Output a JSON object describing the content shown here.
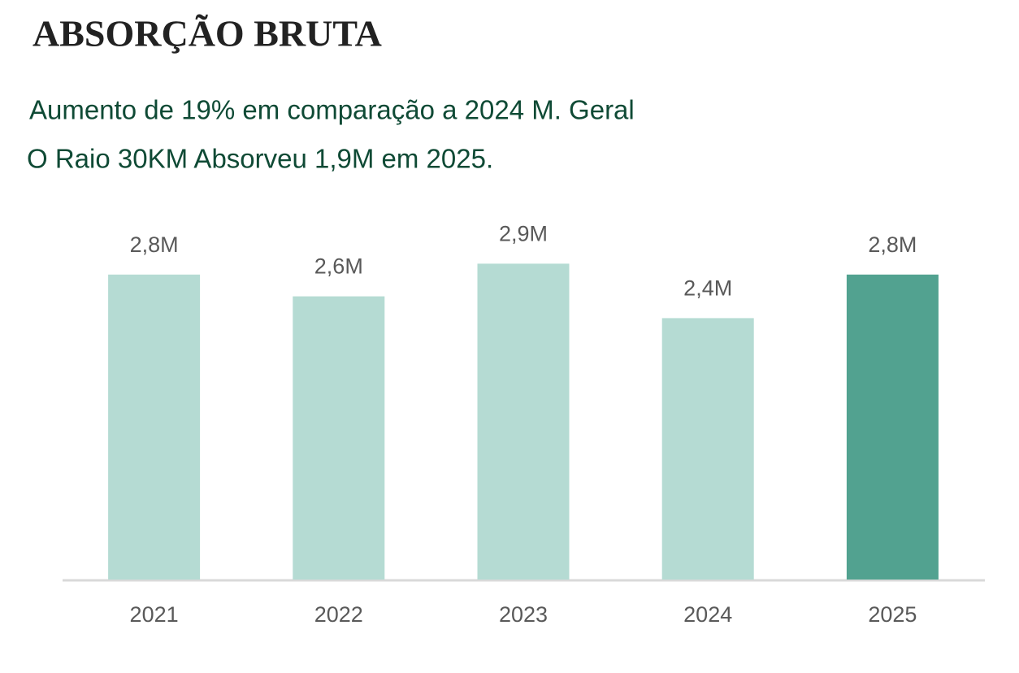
{
  "chart_data": {
    "type": "bar",
    "title": "ABSORÇÃO BRUTA",
    "subtitle": [
      "Aumento de 19% em comparação a 2024 M. Geral",
      "O Raio 30KM Absorveu 1,9M em 2025."
    ],
    "categories": [
      "2021",
      "2022",
      "2023",
      "2024",
      "2025"
    ],
    "values": [
      2.8,
      2.6,
      2.9,
      2.4,
      2.8
    ],
    "value_labels": [
      "2,8M",
      "2,6M",
      "2,9M",
      "2,4M",
      "2,8M"
    ],
    "colors": [
      "#b5dbd3",
      "#b5dbd3",
      "#b5dbd3",
      "#b5dbd3",
      "#52a290"
    ]
  }
}
